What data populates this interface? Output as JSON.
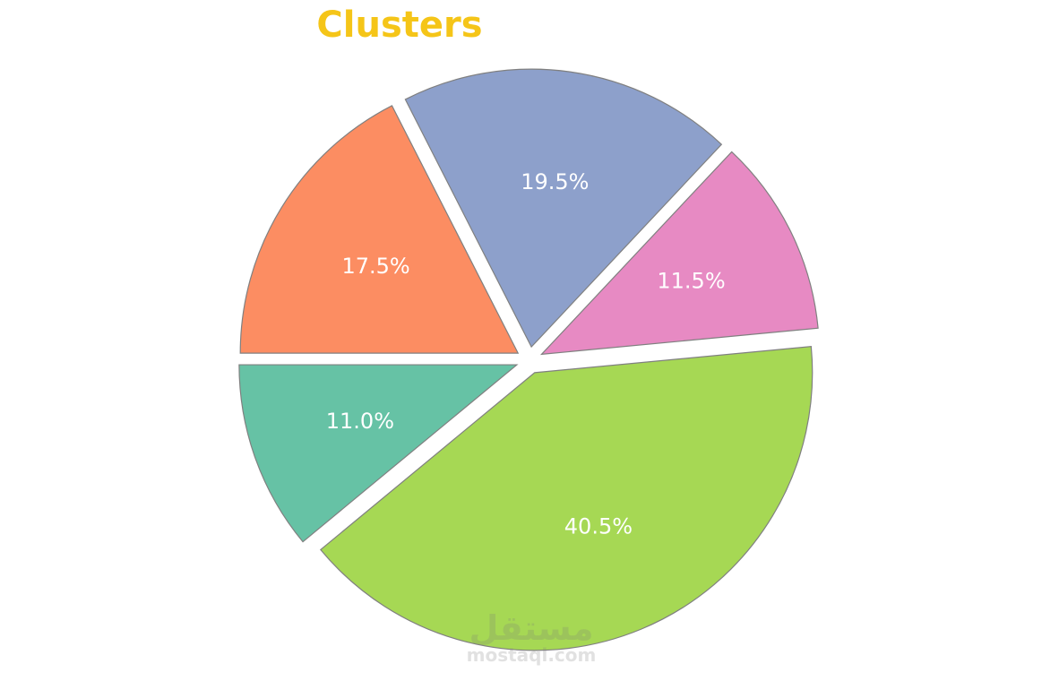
{
  "chart_data": {
    "type": "pie",
    "title": "Clusters",
    "title_color": "#f5c518",
    "start_angle_deg": 180,
    "direction": "counterclockwise",
    "exploded": true,
    "slices": [
      {
        "label": "11.0%",
        "value": 11.0,
        "color": "#66c2a5"
      },
      {
        "label": "40.5%",
        "value": 40.5,
        "color": "#a6d854"
      },
      {
        "label": "11.5%",
        "value": 11.5,
        "color": "#e78ac3"
      },
      {
        "label": "19.5%",
        "value": 19.5,
        "color": "#8da0cb"
      },
      {
        "label": "17.5%",
        "value": 17.5,
        "color": "#fc8d62"
      }
    ]
  },
  "watermark": {
    "text": "mostaql.com",
    "logo_text": "مستقل"
  }
}
